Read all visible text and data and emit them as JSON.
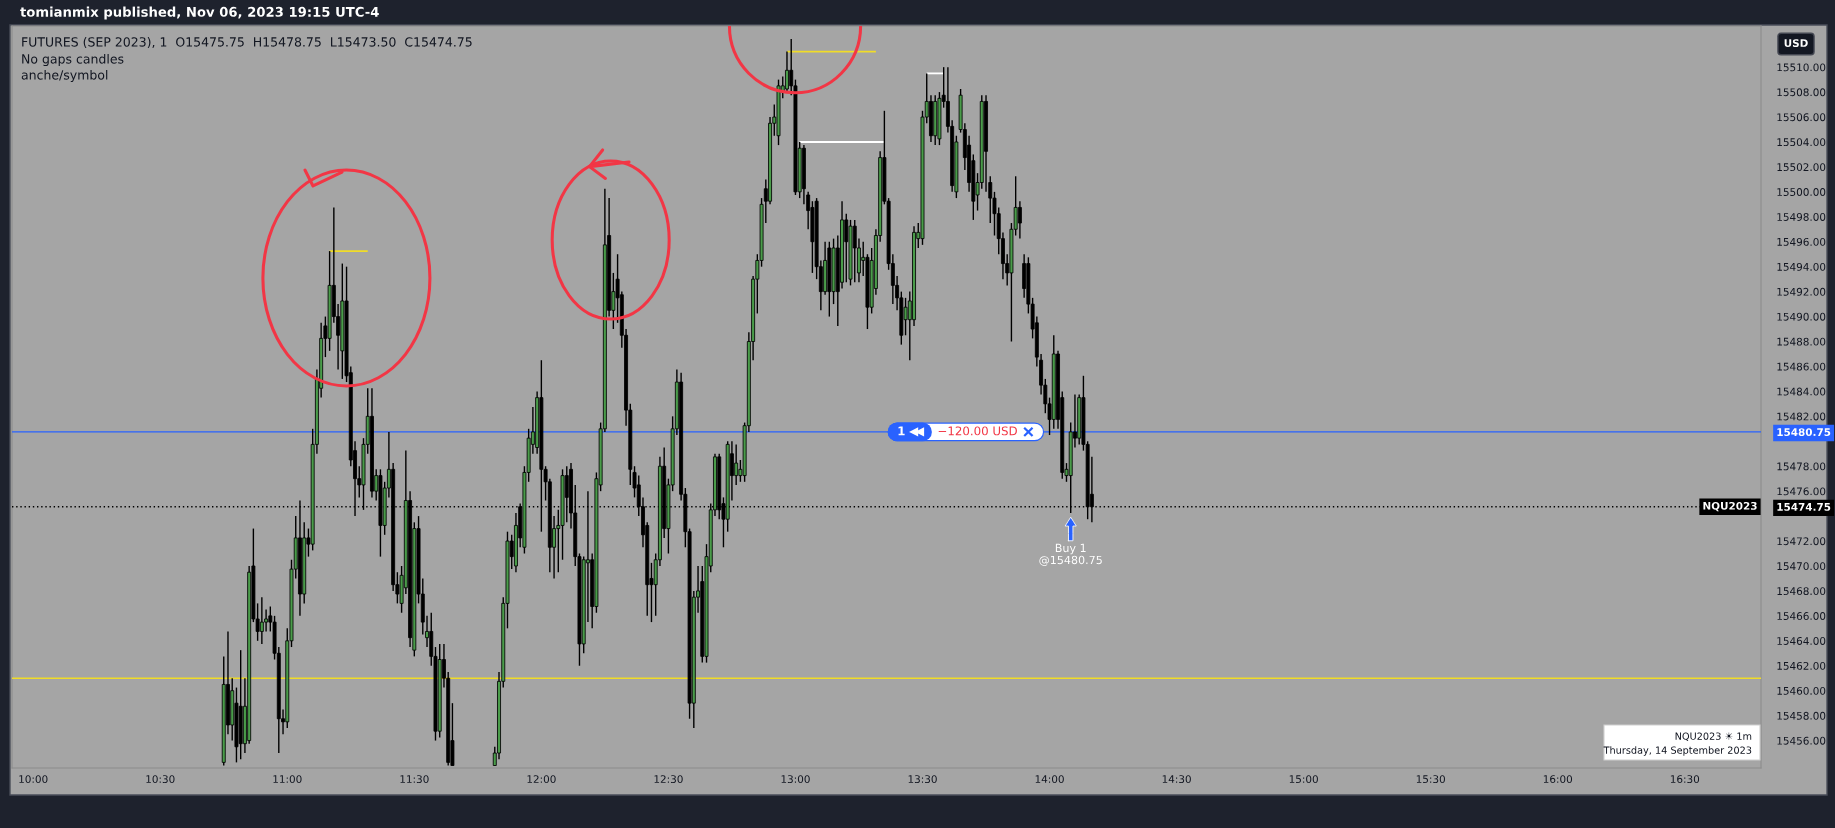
{
  "chart_data": {
    "type": "candlestick",
    "title": "FUTURES (SEP 2023), 1  O15475.75  H15478.75  L15473.50  C15474.75",
    "x": [
      "2023-09-14T10:45",
      "2023-09-14T10:46",
      "2023-09-14T10:47",
      "2023-09-14T10:48",
      "2023-09-14T10:49",
      "2023-09-14T10:50",
      "2023-09-14T10:51",
      "2023-09-14T10:52",
      "2023-09-14T10:53",
      "2023-09-14T10:54",
      "2023-09-14T10:55",
      "2023-09-14T10:56",
      "2023-09-14T10:57",
      "2023-09-14T10:58",
      "2023-09-14T10:59",
      "2023-09-14T11:00",
      "2023-09-14T11:01",
      "2023-09-14T11:02",
      "2023-09-14T11:03",
      "2023-09-14T11:04",
      "2023-09-14T11:05",
      "2023-09-14T11:06",
      "2023-09-14T11:07",
      "2023-09-14T11:08",
      "2023-09-14T11:09",
      "2023-09-14T11:10",
      "2023-09-14T11:11",
      "2023-09-14T11:12",
      "2023-09-14T11:13",
      "2023-09-14T11:14",
      "2023-09-14T11:15",
      "2023-09-14T11:16",
      "2023-09-14T11:17",
      "2023-09-14T11:18",
      "2023-09-14T11:19",
      "2023-09-14T11:20",
      "2023-09-14T11:21",
      "2023-09-14T11:22",
      "2023-09-14T11:23",
      "2023-09-14T11:24",
      "2023-09-14T11:25",
      "2023-09-14T11:26",
      "2023-09-14T11:27",
      "2023-09-14T11:28",
      "2023-09-14T11:29",
      "2023-09-14T11:30",
      "2023-09-14T11:31",
      "2023-09-14T11:32",
      "2023-09-14T11:33",
      "2023-09-14T11:34",
      "2023-09-14T11:35",
      "2023-09-14T11:36",
      "2023-09-14T11:37",
      "2023-09-14T11:38",
      "2023-09-14T11:39",
      "2023-09-14T11:49",
      "2023-09-14T11:50",
      "2023-09-14T11:51",
      "2023-09-14T11:52",
      "2023-09-14T11:53",
      "2023-09-14T11:54",
      "2023-09-14T11:55",
      "2023-09-14T11:56",
      "2023-09-14T11:57",
      "2023-09-14T11:58",
      "2023-09-14T11:59",
      "2023-09-14T12:00",
      "2023-09-14T12:01",
      "2023-09-14T12:02",
      "2023-09-14T12:03",
      "2023-09-14T12:04",
      "2023-09-14T12:05",
      "2023-09-14T12:06",
      "2023-09-14T12:07",
      "2023-09-14T12:08",
      "2023-09-14T12:09",
      "2023-09-14T12:10",
      "2023-09-14T12:11",
      "2023-09-14T12:12",
      "2023-09-14T12:13",
      "2023-09-14T12:14",
      "2023-09-14T12:15",
      "2023-09-14T12:16",
      "2023-09-14T12:17",
      "2023-09-14T12:18",
      "2023-09-14T12:19",
      "2023-09-14T12:20",
      "2023-09-14T12:21",
      "2023-09-14T12:22",
      "2023-09-14T12:23",
      "2023-09-14T12:24",
      "2023-09-14T12:25",
      "2023-09-14T12:26",
      "2023-09-14T12:27",
      "2023-09-14T12:28",
      "2023-09-14T12:29",
      "2023-09-14T12:30",
      "2023-09-14T12:31",
      "2023-09-14T12:32",
      "2023-09-14T12:33",
      "2023-09-14T12:34",
      "2023-09-14T12:35",
      "2023-09-14T12:36",
      "2023-09-14T12:37",
      "2023-09-14T12:38",
      "2023-09-14T12:39",
      "2023-09-14T12:40",
      "2023-09-14T12:41",
      "2023-09-14T12:42",
      "2023-09-14T12:43",
      "2023-09-14T12:44",
      "2023-09-14T12:45",
      "2023-09-14T12:46",
      "2023-09-14T12:47",
      "2023-09-14T12:48",
      "2023-09-14T12:49",
      "2023-09-14T12:50",
      "2023-09-14T12:51",
      "2023-09-14T12:52",
      "2023-09-14T12:53",
      "2023-09-14T12:54",
      "2023-09-14T12:55",
      "2023-09-14T12:56",
      "2023-09-14T12:57",
      "2023-09-14T12:58",
      "2023-09-14T12:59",
      "2023-09-14T13:00",
      "2023-09-14T13:01",
      "2023-09-14T13:02",
      "2023-09-14T13:03",
      "2023-09-14T13:04",
      "2023-09-14T13:05",
      "2023-09-14T13:06",
      "2023-09-14T13:07",
      "2023-09-14T13:08",
      "2023-09-14T13:09",
      "2023-09-14T13:10",
      "2023-09-14T13:11",
      "2023-09-14T13:12",
      "2023-09-14T13:13",
      "2023-09-14T13:14",
      "2023-09-14T13:15",
      "2023-09-14T13:16",
      "2023-09-14T13:17",
      "2023-09-14T13:18",
      "2023-09-14T13:19",
      "2023-09-14T13:20",
      "2023-09-14T13:21",
      "2023-09-14T13:22",
      "2023-09-14T13:23",
      "2023-09-14T13:24",
      "2023-09-14T13:25",
      "2023-09-14T13:26",
      "2023-09-14T13:27",
      "2023-09-14T13:28",
      "2023-09-14T13:29",
      "2023-09-14T13:30",
      "2023-09-14T13:31",
      "2023-09-14T13:32",
      "2023-09-14T13:33",
      "2023-09-14T13:34",
      "2023-09-14T13:35",
      "2023-09-14T13:36",
      "2023-09-14T13:37",
      "2023-09-14T13:38",
      "2023-09-14T13:39",
      "2023-09-14T13:40",
      "2023-09-14T13:41",
      "2023-09-14T13:42",
      "2023-09-14T13:43",
      "2023-09-14T13:44",
      "2023-09-14T13:45",
      "2023-09-14T13:46",
      "2023-09-14T13:47",
      "2023-09-14T13:48",
      "2023-09-14T13:49",
      "2023-09-14T13:50",
      "2023-09-14T13:51",
      "2023-09-14T13:52",
      "2023-09-14T13:53",
      "2023-09-14T13:54",
      "2023-09-14T13:55",
      "2023-09-14T13:56",
      "2023-09-14T13:57",
      "2023-09-14T13:58",
      "2023-09-14T13:59",
      "2023-09-14T14:00",
      "2023-09-14T14:01",
      "2023-09-14T14:02",
      "2023-09-14T14:03",
      "2023-09-14T14:04",
      "2023-09-14T14:05",
      "2023-09-14T14:06",
      "2023-09-14T14:07",
      "2023-09-14T14:08",
      "2023-09-14T14:09",
      "2023-09-14T14:10"
    ],
    "ohlc": [
      [
        15454.25,
        15462.75,
        15454.0,
        15460.5
      ],
      [
        15460.5,
        15464.75,
        15456.5,
        15457.25
      ],
      [
        15457.25,
        15461.0,
        15456.0,
        15460.0
      ],
      [
        15459.0,
        15460.25,
        15454.25,
        15455.5
      ],
      [
        15458.75,
        15463.25,
        15454.5,
        15455.75
      ],
      [
        15455.75,
        15461.0,
        15455.0,
        15458.75
      ],
      [
        15456.0,
        15470.0,
        15455.75,
        15469.5
      ],
      [
        15470.0,
        15473.0,
        15465.5,
        15465.75
      ],
      [
        15465.75,
        15467.0,
        15464.0,
        15464.75
      ],
      [
        15464.75,
        15467.5,
        15463.75,
        15465.5
      ],
      [
        15465.5,
        15466.5,
        15464.75,
        15465.75
      ],
      [
        15466.0,
        15466.75,
        15464.75,
        15465.5
      ],
      [
        15465.5,
        15466.0,
        15462.5,
        15463.0
      ],
      [
        15463.0,
        15463.5,
        15455.0,
        15457.75
      ],
      [
        15457.75,
        15458.5,
        15456.5,
        15457.5
      ],
      [
        15457.5,
        15465.0,
        15457.0,
        15464.0
      ],
      [
        15464.0,
        15470.5,
        15463.5,
        15469.75
      ],
      [
        15469.75,
        15474.0,
        15469.0,
        15472.25
      ],
      [
        15472.25,
        15475.25,
        15466.0,
        15467.75
      ],
      [
        15467.75,
        15473.5,
        15467.0,
        15472.25
      ],
      [
        15472.25,
        15473.0,
        15470.75,
        15471.75
      ],
      [
        15471.75,
        15481.0,
        15471.25,
        15479.75
      ],
      [
        15479.75,
        15485.75,
        15479.0,
        15485.0
      ],
      [
        15484.25,
        15489.5,
        15483.5,
        15488.25
      ],
      [
        15489.25,
        15490.0,
        15486.75,
        15488.25
      ],
      [
        15488.25,
        15495.25,
        15487.25,
        15492.5
      ],
      [
        15492.5,
        15498.75,
        15489.5,
        15490.0
      ],
      [
        15490.0,
        15491.0,
        15485.75,
        15488.5
      ],
      [
        15487.25,
        15494.25,
        15485.0,
        15491.25
      ],
      [
        15491.25,
        15494.0,
        15484.75,
        15485.25
      ],
      [
        15485.5,
        15486.0,
        15478.0,
        15478.5
      ],
      [
        15479.25,
        15480.0,
        15474.0,
        15477.0
      ],
      [
        15477.0,
        15478.0,
        15475.5,
        15476.5
      ],
      [
        15476.5,
        15480.25,
        15474.5,
        15479.75
      ],
      [
        15479.75,
        15484.25,
        15479.0,
        15482.0
      ],
      [
        15482.0,
        15484.25,
        15475.5,
        15476.0
      ],
      [
        15476.0,
        15477.75,
        15475.25,
        15477.25
      ],
      [
        15477.25,
        15477.75,
        15470.75,
        15473.25
      ],
      [
        15473.25,
        15476.75,
        15472.5,
        15476.25
      ],
      [
        15476.25,
        15480.75,
        15475.5,
        15477.75
      ],
      [
        15477.75,
        15478.25,
        15468.0,
        15468.5
      ],
      [
        15468.5,
        15469.5,
        15467.0,
        15467.75
      ],
      [
        15467.0,
        15470.0,
        15466.25,
        15469.25
      ],
      [
        15468.25,
        15479.25,
        15467.75,
        15475.25
      ],
      [
        15475.25,
        15476.0,
        15463.5,
        15464.25
      ],
      [
        15463.25,
        15473.5,
        15462.75,
        15473.0
      ],
      [
        15473.0,
        15474.0,
        15467.0,
        15467.75
      ],
      [
        15467.75,
        15469.0,
        15464.5,
        15465.5
      ],
      [
        15464.25,
        15466.0,
        15463.5,
        15464.75
      ],
      [
        15464.75,
        15466.25,
        15462.0,
        15462.75
      ],
      [
        15462.75,
        15463.5,
        15456.0,
        15456.75
      ],
      [
        15456.75,
        15463.75,
        15456.25,
        15462.5
      ],
      [
        15462.5,
        15463.75,
        15460.25,
        15461.0
      ],
      [
        15461.0,
        15461.5,
        15454.0,
        15454.25
      ],
      [
        15456.0,
        15459.0,
        15454.0,
        15454.0
      ],
      [
        15454.0,
        15455.5,
        15454.0,
        15455.0
      ],
      [
        15455.0,
        15461.5,
        15454.5,
        15460.75
      ],
      [
        15460.75,
        15467.5,
        15460.25,
        15467.0
      ],
      [
        15467.0,
        15472.75,
        15465.0,
        15472.0
      ],
      [
        15472.0,
        15472.5,
        15469.75,
        15470.75
      ],
      [
        15470.0,
        15474.25,
        15469.5,
        15473.25
      ],
      [
        15474.75,
        15475.0,
        15471.5,
        15472.25
      ],
      [
        15471.5,
        15478.0,
        15471.0,
        15477.5
      ],
      [
        15477.5,
        15481.0,
        15476.75,
        15480.25
      ],
      [
        15479.75,
        15482.75,
        15479.0,
        15480.75
      ],
      [
        15479.5,
        15484.0,
        15479.0,
        15483.5
      ],
      [
        15483.5,
        15486.5,
        15472.75,
        15477.75
      ],
      [
        15477.75,
        15478.0,
        15475.25,
        15476.75
      ],
      [
        15476.75,
        15477.0,
        15469.5,
        15471.5
      ],
      [
        15471.5,
        15474.0,
        15469.0,
        15473.0
      ],
      [
        15473.0,
        15474.5,
        15469.5,
        15473.25
      ],
      [
        15473.25,
        15477.75,
        15470.5,
        15477.25
      ],
      [
        15477.25,
        15478.0,
        15473.5,
        15475.5
      ],
      [
        15477.75,
        15478.25,
        15473.0,
        15474.25
      ],
      [
        15474.25,
        15476.5,
        15470.0,
        15470.75
      ],
      [
        15470.75,
        15471.0,
        15462.0,
        15463.75
      ],
      [
        15463.75,
        15470.75,
        15463.0,
        15470.5
      ],
      [
        15470.25,
        15476.0,
        15465.5,
        15470.5
      ],
      [
        15470.5,
        15471.0,
        15465.0,
        15466.75
      ],
      [
        15466.75,
        15477.5,
        15466.25,
        15477.0
      ],
      [
        15476.5,
        15481.5,
        15476.0,
        15481.0
      ],
      [
        15481.0,
        15500.25,
        15480.75,
        15495.75
      ],
      [
        15496.5,
        15499.5,
        15490.0,
        15490.5
      ],
      [
        15490.5,
        15493.5,
        15489.0,
        15492.0
      ],
      [
        15493.0,
        15495.0,
        15489.5,
        15491.5
      ],
      [
        15491.75,
        15492.0,
        15487.5,
        15488.5
      ],
      [
        15488.5,
        15489.0,
        15481.25,
        15482.5
      ],
      [
        15482.5,
        15483.0,
        15476.5,
        15477.75
      ],
      [
        15477.5,
        15478.0,
        15475.5,
        15476.25
      ],
      [
        15476.5,
        15477.25,
        15474.0,
        15474.75
      ],
      [
        15474.75,
        15475.5,
        15471.5,
        15472.5
      ],
      [
        15473.25,
        15473.5,
        15466.0,
        15468.5
      ],
      [
        15469.0,
        15470.25,
        15465.5,
        15468.5
      ],
      [
        15468.5,
        15471.0,
        15466.0,
        15470.5
      ],
      [
        15470.5,
        15478.75,
        15470.0,
        15478.0
      ],
      [
        15478.0,
        15479.5,
        15472.25,
        15473.0
      ],
      [
        15473.0,
        15477.0,
        15471.0,
        15476.5
      ],
      [
        15476.5,
        15482.0,
        15476.0,
        15481.0
      ],
      [
        15481.0,
        15485.75,
        15480.5,
        15484.75
      ],
      [
        15484.75,
        15485.5,
        15475.25,
        15475.75
      ],
      [
        15475.75,
        15476.25,
        15471.5,
        15472.75
      ],
      [
        15472.75,
        15473.0,
        15457.75,
        15459.0
      ],
      [
        15459.0,
        15468.0,
        15457.0,
        15467.5
      ],
      [
        15467.5,
        15470.0,
        15466.25,
        15468.0
      ],
      [
        15468.75,
        15470.0,
        15462.25,
        15462.75
      ],
      [
        15462.75,
        15471.75,
        15462.25,
        15470.75
      ],
      [
        15470.0,
        15475.0,
        15469.5,
        15474.5
      ],
      [
        15474.5,
        15479.0,
        15474.0,
        15478.75
      ],
      [
        15478.75,
        15479.0,
        15473.75,
        15474.5
      ],
      [
        15475.0,
        15475.5,
        15471.5,
        15473.75
      ],
      [
        15473.75,
        15480.0,
        15472.75,
        15479.75
      ],
      [
        15479.0,
        15480.0,
        15475.25,
        15477.25
      ],
      [
        15477.25,
        15479.75,
        15476.5,
        15478.25
      ],
      [
        15477.25,
        15478.5,
        15476.75,
        15477.75
      ],
      [
        15477.25,
        15481.5,
        15476.75,
        15481.25
      ],
      [
        15481.25,
        15488.75,
        15480.75,
        15488.0
      ],
      [
        15488.0,
        15493.25,
        15486.5,
        15493.0
      ],
      [
        15493.0,
        15495.0,
        15490.25,
        15494.5
      ],
      [
        15494.5,
        15499.5,
        15494.0,
        15499.0
      ],
      [
        15500.25,
        15501.0,
        15497.5,
        15499.25
      ],
      [
        15499.25,
        15506.0,
        15499.0,
        15505.5
      ],
      [
        15505.5,
        15507.0,
        15504.5,
        15506.0
      ],
      [
        15504.5,
        15509.0,
        15503.75,
        15508.5
      ],
      [
        15508.0,
        15509.25,
        15507.5,
        15508.5
      ],
      [
        15508.25,
        15511.25,
        15508.0,
        15509.75
      ],
      [
        15509.75,
        15512.25,
        15507.75,
        15508.5
      ],
      [
        15508.5,
        15509.0,
        15499.75,
        15500.0
      ],
      [
        15500.0,
        15504.0,
        15499.5,
        15503.5
      ],
      [
        15503.5,
        15503.75,
        15499.0,
        15500.25
      ],
      [
        15499.75,
        15500.0,
        15497.0,
        15498.5
      ],
      [
        15498.75,
        15499.25,
        15493.5,
        15496.0
      ],
      [
        15499.25,
        15499.5,
        15493.0,
        15494.0
      ],
      [
        15494.0,
        15494.5,
        15490.5,
        15492.0
      ],
      [
        15492.0,
        15496.0,
        15491.75,
        15494.5
      ],
      [
        15495.5,
        15496.0,
        15490.0,
        15492.0
      ],
      [
        15492.0,
        15496.25,
        15491.0,
        15495.5
      ],
      [
        15495.5,
        15496.5,
        15489.25,
        15492.0
      ],
      [
        15492.75,
        15499.25,
        15492.25,
        15497.75
      ],
      [
        15497.75,
        15498.25,
        15492.75,
        15496.0
      ],
      [
        15493.0,
        15497.75,
        15492.5,
        15497.25
      ],
      [
        15497.25,
        15497.75,
        15492.75,
        15495.5
      ],
      [
        15493.5,
        15496.25,
        15492.75,
        15495.5
      ],
      [
        15494.5,
        15496.0,
        15493.25,
        15494.75
      ],
      [
        15494.75,
        15495.0,
        15489.0,
        15490.75
      ],
      [
        15490.75,
        15495.5,
        15490.25,
        15494.5
      ],
      [
        15492.25,
        15497.0,
        15491.75,
        15496.5
      ],
      [
        15496.5,
        15503.25,
        15496.0,
        15502.75
      ],
      [
        15502.75,
        15506.5,
        15499.0,
        15499.25
      ],
      [
        15499.25,
        15499.5,
        15493.75,
        15494.25
      ],
      [
        15494.25,
        15495.0,
        15491.0,
        15492.5
      ],
      [
        15492.5,
        15493.25,
        15490.5,
        15491.5
      ],
      [
        15491.5,
        15492.0,
        15487.75,
        15488.5
      ],
      [
        15489.75,
        15491.5,
        15488.5,
        15490.75
      ],
      [
        15489.75,
        15492.0,
        15486.5,
        15491.25
      ],
      [
        15489.75,
        15497.25,
        15489.25,
        15496.75
      ],
      [
        15496.25,
        15497.5,
        15495.5,
        15496.75
      ],
      [
        15496.25,
        15506.5,
        15495.75,
        15506.0
      ],
      [
        15506.0,
        15509.5,
        15505.5,
        15507.25
      ],
      [
        15507.25,
        15507.75,
        15504.0,
        15504.5
      ],
      [
        15504.5,
        15507.75,
        15503.75,
        15507.25
      ],
      [
        15504.25,
        15508.0,
        15503.75,
        15507.5
      ],
      [
        15507.75,
        15510.0,
        15506.75,
        15507.25
      ],
      [
        15507.25,
        15510.0,
        15504.75,
        15505.25
      ],
      [
        15505.25,
        15505.75,
        15500.0,
        15500.5
      ],
      [
        15500.0,
        15504.5,
        15499.5,
        15504.0
      ],
      [
        15505.0,
        15508.25,
        15504.75,
        15507.75
      ],
      [
        15505.0,
        15505.5,
        15501.75,
        15502.75
      ],
      [
        15503.75,
        15504.5,
        15500.0,
        15500.75
      ],
      [
        15502.5,
        15503.0,
        15497.75,
        15499.25
      ],
      [
        15499.75,
        15501.5,
        15498.5,
        15500.75
      ],
      [
        15500.75,
        15507.75,
        15500.25,
        15507.25
      ],
      [
        15507.25,
        15507.75,
        15500.0,
        15503.25
      ],
      [
        15500.75,
        15501.25,
        15497.5,
        15499.5
      ],
      [
        15499.5,
        15500.0,
        15496.5,
        15498.25
      ],
      [
        15498.25,
        15498.75,
        15495.0,
        15496.25
      ],
      [
        15496.25,
        15496.75,
        15493.0,
        15494.25
      ],
      [
        15494.25,
        15495.0,
        15492.5,
        15493.5
      ],
      [
        15493.5,
        15497.5,
        15488.0,
        15497.0
      ],
      [
        15497.0,
        15501.25,
        15496.5,
        15498.75
      ],
      [
        15498.75,
        15499.25,
        15496.25,
        15497.5
      ],
      [
        15494.25,
        15495.0,
        15491.5,
        15492.25
      ],
      [
        15494.25,
        15494.75,
        15490.25,
        15491.0
      ],
      [
        15491.0,
        15491.5,
        15488.25,
        15489.0
      ],
      [
        15489.5,
        15490.0,
        15486.0,
        15486.75
      ],
      [
        15486.5,
        15487.0,
        15483.75,
        15484.5
      ],
      [
        15484.5,
        15485.0,
        15482.25,
        15483.0
      ],
      [
        15483.0,
        15483.5,
        15480.5,
        15481.75
      ],
      [
        15481.75,
        15488.5,
        15481.0,
        15487.0
      ],
      [
        15487.0,
        15487.25,
        15481.0,
        15481.75
      ],
      [
        15483.5,
        15484.0,
        15477.0,
        15477.5
      ],
      [
        15477.25,
        15478.25,
        15476.75,
        15477.75
      ],
      [
        15477.25,
        15481.5,
        15474.25,
        15480.75
      ],
      [
        15480.75,
        15483.75,
        15479.5,
        15480.25
      ],
      [
        15480.25,
        15483.75,
        15479.75,
        15483.5
      ],
      [
        15483.5,
        15485.25,
        15479.25,
        15479.75
      ],
      [
        15479.75,
        15480.0,
        15473.75,
        15474.75
      ],
      [
        15475.75,
        15478.75,
        15473.5,
        15474.75
      ]
    ],
    "colors": [
      "#4a9c4a",
      "#000000",
      "#4a9c4a",
      "#000000",
      "#000000",
      "#4a9c4a",
      "#4a9c4a",
      "#000000",
      "#000000",
      "#4a9c4a",
      "#4a9c4a",
      "#000000",
      "#000000",
      "#000000",
      "#000000",
      "#4a9c4a",
      "#4a9c4a",
      "#4a9c4a",
      "#000000",
      "#4a9c4a",
      "#000000",
      "#4a9c4a",
      "#4a9c4a",
      "#4a9c4a",
      "#000000",
      "#4a9c4a",
      "#000000",
      "#000000",
      "#4a9c4a",
      "#000000",
      "#000000",
      "#000000",
      "#000000",
      "#4a9c4a",
      "#4a9c4a",
      "#000000",
      "#4a9c4a",
      "#000000",
      "#4a9c4a",
      "#4a9c4a",
      "#000000",
      "#000000",
      "#4a9c4a",
      "#4a9c4a",
      "#000000",
      "#4a9c4a",
      "#000000",
      "#000000",
      "#4a9c4a",
      "#000000",
      "#000000",
      "#4a9c4a",
      "#000000",
      "#000000",
      "#000000",
      "#4a9c4a",
      "#4a9c4a",
      "#4a9c4a",
      "#4a9c4a",
      "#000000",
      "#4a9c4a",
      "#000000",
      "#4a9c4a",
      "#4a9c4a",
      "#4a9c4a",
      "#4a9c4a",
      "#000000",
      "#000000",
      "#000000",
      "#4a9c4a",
      "#4a9c4a",
      "#4a9c4a",
      "#000000",
      "#000000",
      "#000000",
      "#000000",
      "#4a9c4a",
      "#4a9c4a",
      "#000000",
      "#4a9c4a",
      "#4a9c4a",
      "#4a9c4a",
      "#000000",
      "#4a9c4a",
      "#000000",
      "#000000",
      "#000000",
      "#000000",
      "#000000",
      "#000000",
      "#000000",
      "#000000",
      "#000000",
      "#4a9c4a",
      "#4a9c4a",
      "#000000",
      "#4a9c4a",
      "#4a9c4a",
      "#4a9c4a",
      "#000000",
      "#000000",
      "#000000",
      "#4a9c4a",
      "#4a9c4a",
      "#000000",
      "#4a9c4a",
      "#4a9c4a",
      "#4a9c4a",
      "#000000",
      "#000000",
      "#4a9c4a",
      "#000000",
      "#4a9c4a",
      "#4a9c4a",
      "#4a9c4a",
      "#4a9c4a",
      "#4a9c4a",
      "#4a9c4a",
      "#4a9c4a",
      "#000000",
      "#4a9c4a",
      "#4a9c4a",
      "#4a9c4a",
      "#4a9c4a",
      "#4a9c4a",
      "#000000",
      "#000000",
      "#4a9c4a",
      "#000000",
      "#000000",
      "#000000",
      "#000000",
      "#000000",
      "#4a9c4a",
      "#000000",
      "#4a9c4a",
      "#000000",
      "#4a9c4a",
      "#000000",
      "#4a9c4a",
      "#000000",
      "#4a9c4a",
      "#4a9c4a",
      "#000000",
      "#4a9c4a",
      "#4a9c4a",
      "#4a9c4a",
      "#000000",
      "#000000",
      "#000000",
      "#000000",
      "#000000",
      "#4a9c4a",
      "#4a9c4a",
      "#4a9c4a",
      "#4a9c4a",
      "#4a9c4a",
      "#4a9c4a",
      "#000000",
      "#4a9c4a",
      "#4a9c4a",
      "#000000",
      "#000000",
      "#000000",
      "#4a9c4a",
      "#4a9c4a",
      "#000000",
      "#000000",
      "#000000",
      "#4a9c4a",
      "#4a9c4a",
      "#000000",
      "#000000",
      "#000000",
      "#000000",
      "#000000",
      "#000000",
      "#4a9c4a",
      "#4a9c4a",
      "#000000",
      "#000000",
      "#000000",
      "#000000",
      "#000000",
      "#000000",
      "#000000",
      "#000000",
      "#4a9c4a",
      "#000000",
      "#000000",
      "#4a9c4a",
      "#4a9c4a",
      "#000000",
      "#4a9c4a",
      "#000000",
      "#000000",
      "#000000"
    ],
    "series": [
      {
        "type": "line",
        "color": "#f0dc28",
        "x": [
          "2023-09-14T11:10",
          "2023-09-14T11:19"
        ],
        "values": [
          15495.25,
          15495.25
        ]
      },
      {
        "type": "line",
        "color": "#f0dc28",
        "x": [
          "2023-09-14T12:58",
          "2023-09-14T13:19"
        ],
        "values": [
          15511.25,
          15511.25
        ]
      },
      {
        "type": "line",
        "color": "#ffffff",
        "x": [
          "2023-09-14T13:01",
          "2023-09-14T13:21"
        ],
        "values": [
          15504.0,
          15504.0
        ]
      },
      {
        "type": "line",
        "color": "#ffffff",
        "x": [
          "2023-09-14T13:31",
          "2023-09-14T13:35"
        ],
        "values": [
          15509.5,
          15509.5
        ]
      }
    ],
    "ref_lines": [
      {
        "axis": "y",
        "value": 15480.75,
        "color": "#2962ff"
      },
      {
        "axis": "y",
        "value": 15474.75,
        "color": "#000000",
        "line_style": "dotted",
        "label": "NQU2023"
      },
      {
        "axis": "y",
        "value": 15461.0,
        "color": "#f0dc28"
      }
    ],
    "annotations": [
      "tomianmix published, Nov 06, 2023 19:15 UTC-4",
      "No gaps candles",
      "anche/symbol",
      "USD",
      "NQU2023 ☀ 1m",
      "Thursday, 14 September 2023",
      {
        "text": "1",
        "x": "2023-09-14T13:25",
        "y": 15480.75
      },
      {
        "text": "−120.00 USD",
        "x": "2023-09-14T13:43",
        "y": 15480.75
      },
      {
        "text": "Buy 1\n@15480.75",
        "x": "2023-09-14T14:05",
        "y": 15474.25
      }
    ],
    "xlim": [
      "2023-09-14T09:55",
      "2023-09-14T16:48"
    ],
    "xticks": [
      {
        "value": "2023-09-14T10:00",
        "label": "10:00"
      },
      {
        "value": "2023-09-14T10:30",
        "label": "10:30"
      },
      {
        "value": "2023-09-14T11:00",
        "label": "11:00"
      },
      {
        "value": "2023-09-14T11:30",
        "label": "11:30"
      },
      {
        "value": "2023-09-14T12:00",
        "label": "12:00"
      },
      {
        "value": "2023-09-14T12:30",
        "label": "12:30"
      },
      {
        "value": "2023-09-14T13:00",
        "label": "13:00"
      },
      {
        "value": "2023-09-14T13:30",
        "label": "13:30"
      },
      {
        "value": "2023-09-14T14:00",
        "label": "14:00"
      },
      {
        "value": "2023-09-14T14:30",
        "label": "14:30"
      },
      {
        "value": "2023-09-14T15:00",
        "label": "15:00"
      },
      {
        "value": "2023-09-14T15:30",
        "label": "15:30"
      },
      {
        "value": "2023-09-14T16:00",
        "label": "16:00"
      },
      {
        "value": "2023-09-14T16:30",
        "label": "16:30"
      }
    ],
    "ylim": [
      15453.8,
      15513.3
    ],
    "yticks": [
      {
        "value": 15456,
        "label": "15456.00"
      },
      {
        "value": 15458,
        "label": "15458.00"
      },
      {
        "value": 15460,
        "label": "15460.00"
      },
      {
        "value": 15462,
        "label": "15462.00"
      },
      {
        "value": 15464,
        "label": "15464.00"
      },
      {
        "value": 15466,
        "label": "15466.00"
      },
      {
        "value": 15468,
        "label": "15468.00"
      },
      {
        "value": 15470,
        "label": "15470.00"
      },
      {
        "value": 15472,
        "label": "15472.00"
      },
      {
        "value": 15476,
        "label": "15476.00"
      },
      {
        "value": 15478,
        "label": "15478.00"
      },
      {
        "value": 15482,
        "label": "15482.00"
      },
      {
        "value": 15484,
        "label": "15484.00"
      },
      {
        "value": 15486,
        "label": "15486.00"
      },
      {
        "value": 15488,
        "label": "15488.00"
      },
      {
        "value": 15490,
        "label": "15490.00"
      },
      {
        "value": 15492,
        "label": "15492.00"
      },
      {
        "value": 15494,
        "label": "15494.00"
      },
      {
        "value": 15496,
        "label": "15496.00"
      },
      {
        "value": 15498,
        "label": "15498.00"
      },
      {
        "value": 15500,
        "label": "15500.00"
      },
      {
        "value": 15502,
        "label": "15502.00"
      },
      {
        "value": 15504,
        "label": "15504.00"
      },
      {
        "value": 15506,
        "label": "15506.00"
      },
      {
        "value": 15508,
        "label": "15508.00"
      },
      {
        "value": 15510,
        "label": "15510.00"
      },
      15480.75,
      15474.75
    ]
  }
}
